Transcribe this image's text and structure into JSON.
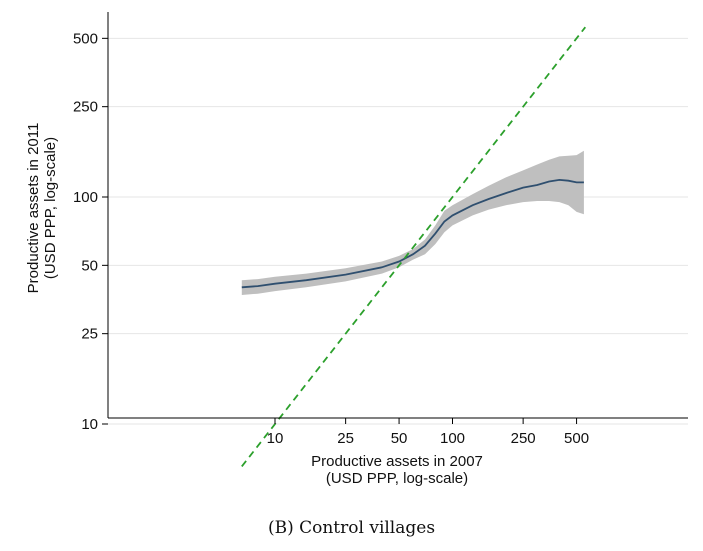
{
  "caption": {
    "label": "(B)",
    "text": "Control villages"
  },
  "chart_data": {
    "type": "line",
    "title": "",
    "xlabel": "Productive assets in 2007",
    "xlabel_sub": "(USD PPP, log-scale)",
    "ylabel": "Productive assets in 2011",
    "ylabel_sub": "(USD PPP, log-scale)",
    "xscale": "log",
    "yscale": "log",
    "xlim": [
      6,
      600
    ],
    "ylim": [
      5,
      560
    ],
    "x_ticks": [
      10,
      25,
      50,
      100,
      250,
      500
    ],
    "x_tick_labels": [
      "10",
      "25",
      "50",
      "100",
      "250",
      "500"
    ],
    "y_ticks": [
      10,
      25,
      50,
      100,
      250,
      500
    ],
    "y_tick_labels": [
      "10",
      "25",
      "50",
      "100",
      "250",
      "500"
    ],
    "grid": "horizontal",
    "legend": "none",
    "colors": {
      "fit": "#2f4f6f",
      "band": "#bfbfbf",
      "diagonal": "#2ca02c",
      "grid": "#e6e6e6"
    },
    "series": [
      {
        "kind": "fit",
        "x": [
          6.5,
          8,
          10,
          15,
          25,
          40,
          50,
          60,
          70,
          80,
          90,
          100,
          130,
          160,
          200,
          250,
          300,
          350,
          400,
          450,
          500,
          550
        ],
        "y": [
          40,
          40.5,
          41.5,
          43,
          45.5,
          49,
          52,
          56,
          61,
          69,
          78,
          83,
          92,
          98,
          104,
          110,
          113,
          117,
          119,
          118,
          116,
          116
        ],
        "lower": [
          37,
          37.5,
          38.5,
          40,
          42.5,
          46,
          49,
          53,
          56,
          62,
          70,
          75,
          83,
          88,
          92,
          95,
          96,
          96,
          95,
          92,
          86,
          84
        ],
        "upper": [
          43,
          43.5,
          44.5,
          46,
          48.5,
          52,
          55,
          59,
          65,
          75,
          87,
          92,
          103,
          112,
          122,
          131,
          139,
          146,
          151,
          152,
          153,
          160
        ]
      },
      {
        "kind": "diagonal",
        "x": [
          6.5,
          560
        ],
        "y": [
          6.5,
          560
        ]
      }
    ]
  }
}
